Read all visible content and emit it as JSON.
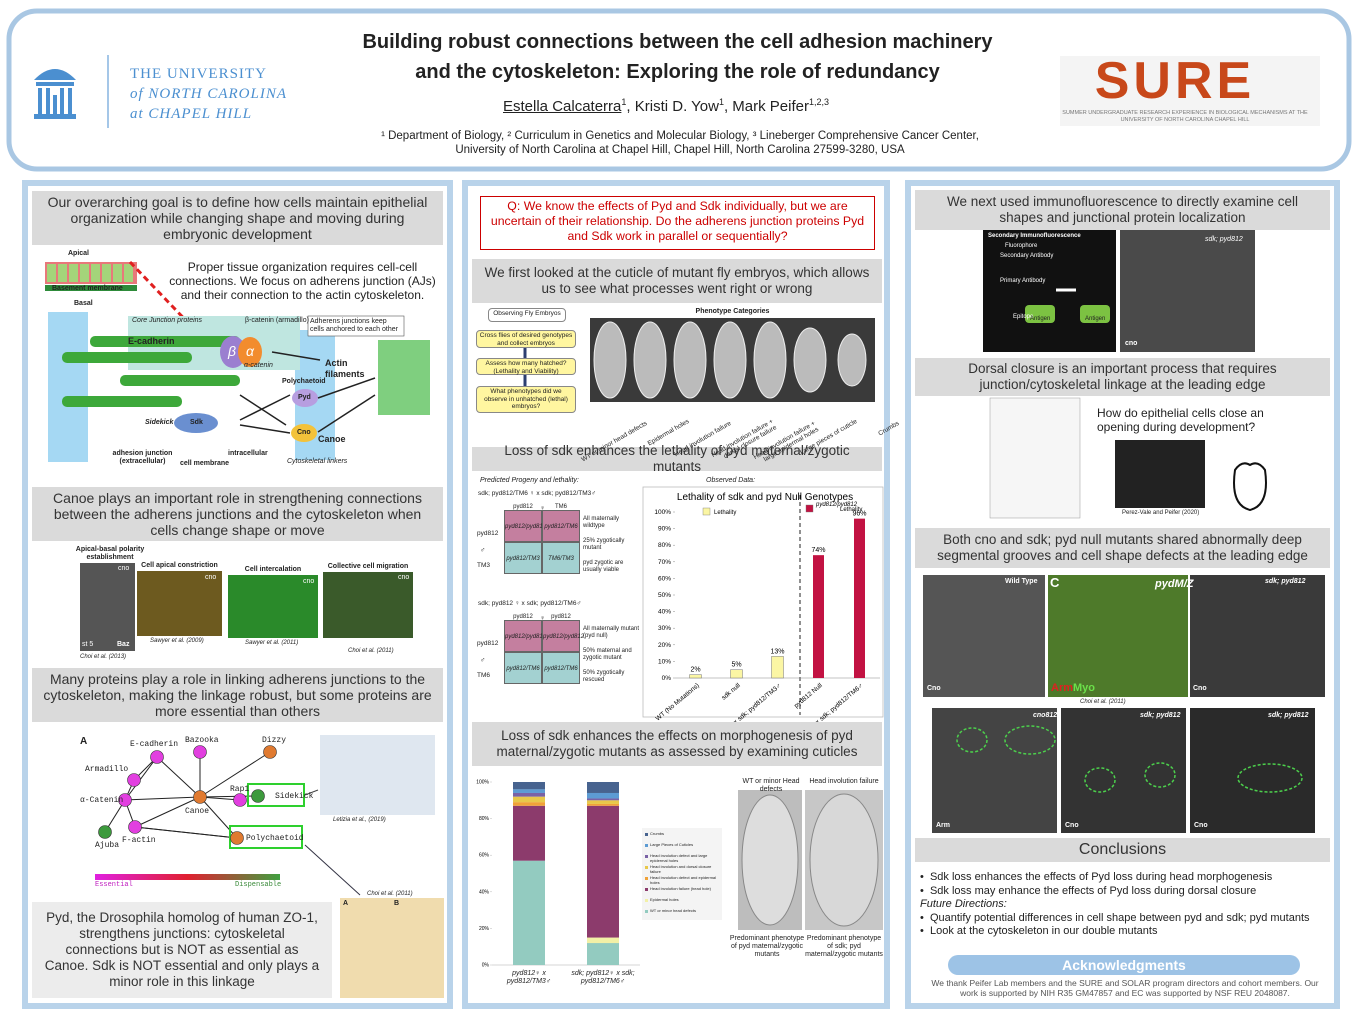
{
  "header": {
    "title_line1": "Building robust connections between the cell adhesion machinery",
    "title_line2": "and the cytoskeleton: Exploring the role of redundancy",
    "author1": "Estella Calcaterra",
    "author1_aff": "1",
    "author2": ", Kristi D. Yow",
    "author2_aff": "1",
    "author3": ", Mark Peifer",
    "author3_aff": "1,2,3",
    "affiliations_line1": "¹ Department of Biology, ² Curriculum in Genetics and Molecular Biology, ³ Lineberger Comprehensive Cancer Center,",
    "affiliations_line2": "University of North Carolina at Chapel Hill, Chapel Hill, North Carolina 27599-3280, USA",
    "university": [
      "THE UNIVERSITY",
      "of NORTH CAROLINA",
      "at CHAPEL HILL"
    ],
    "sure_logo": "SURE",
    "sure_tagline": "SUMMER UNDERGRADUATE RESEARCH EXPERIENCE IN BIOLOGICAL MECHANISMS AT THE UNIVERSITY OF NORTH CAROLINA CHAPEL HILL"
  },
  "left": {
    "goal_heading": "Our overarching goal is to define how cells maintain epithelial organization while changing shape and moving during embryonic development",
    "goal_text": "Proper tissue organization requires cell-cell connections. We focus on adherens junction (AJs) and their connection to the actin cytoskeleton.",
    "diagram": {
      "apical": "Apical",
      "basement": "Basement membrane",
      "basal": "Basal",
      "core": "Core Junction proteins",
      "ecad": "E-cadherin",
      "bcat": "β-catenin (armadillo)",
      "beta": "β",
      "alpha": "α",
      "acat": "α-catenin",
      "aj_note": "Adherens junctions keep cells anchored to each other",
      "actin": "Actin filaments",
      "pyd_name": "Polychaetoid",
      "pyd": "Pyd",
      "sidekick": "Sidekick",
      "sdk": "Sdk",
      "cno": "Cno",
      "canoe": "Canoe",
      "adhesion": "adhesion junction (extracellular)",
      "membrane": "cell membrane",
      "intracellular": "intracellular",
      "linkers": "Cytoskeletal linkers"
    },
    "canoe_heading": "Canoe plays an important role in strengthening connections between the adherens junctions and the cytoskeleton when cells change shape or move",
    "canoe_images": [
      {
        "title": "Apical-basal polarity establishment",
        "label": "cno",
        "cite": "Choi et al. (2013)"
      },
      {
        "title": "Cell apical constriction",
        "label": "cno",
        "cite": "Sawyer et al. (2009)"
      },
      {
        "title": "Cell intercalation",
        "label": "cno",
        "cite": "Sawyer et al. (2011)"
      },
      {
        "title": "Collective cell migration",
        "label": "cno",
        "cite": "Choi et al. (2011)"
      }
    ],
    "stage": "st 5",
    "baz": "Baz",
    "network_heading": "Many proteins play a role in linking adherens junctions to the cytoskeleton, making the linkage robust, but some proteins are more essential than others",
    "network": {
      "panel": "A",
      "nodes": [
        {
          "label": "E-cadherin",
          "color": "#e23fe0"
        },
        {
          "label": "Bazooka",
          "color": "#e23fe0"
        },
        {
          "label": "Dizzy",
          "color": "#e07a30"
        },
        {
          "label": "Armadillo",
          "color": "#e23fe0"
        },
        {
          "label": "Rap1",
          "color": "#e23fe0"
        },
        {
          "label": "α-Catenin",
          "color": "#e23fe0"
        },
        {
          "label": "Canoe",
          "color": "#e07a30"
        },
        {
          "label": "Sidekick",
          "color": "#3d9a3d"
        },
        {
          "label": "F-actin",
          "color": "#e23fe0"
        },
        {
          "label": "Polychaetoid",
          "color": "#e07a30"
        },
        {
          "label": "Ajuba",
          "color": "#3d9a3d"
        }
      ],
      "essential": "Essential",
      "dispensable": "Dispensable",
      "cite": "Letizia et al., (2019)"
    },
    "pyd_text": "Pyd, the Drosophila homolog of human ZO-1, strengthens junctions: cytoskeletal connections but is NOT as essential as Canoe. Sdk is NOT essential and only plays a minor role in this linkage",
    "pyd_image": {
      "cite": "Choi et al. (2011)",
      "a": "A",
      "b": "B"
    }
  },
  "middle": {
    "question": "Q: We know the effects of Pyd and Sdk individually, but we are uncertain of their relationship. Do the adherens junction proteins Pyd and Sdk work in parallel or sequentially?",
    "cuticle_heading": "We first looked at the cuticle of mutant fly embryos, which allows us to see what processes went right or wrong",
    "flow": [
      "Observing Fly Embryos",
      "Cross flies of desired genotypes and collect embryos",
      "Assess how many hatched? (Lethality and Viability)",
      "What phenotypes did we observe in unhatched (lethal) embryos?"
    ],
    "phenotypes_title": "Phenotype Categories",
    "phenotypes": [
      "WT or minor head defects",
      "Epidermal holes",
      "Head involution failure",
      "Head involution failure + dorsal closure failure",
      "Head involution failure + large epidermal holes",
      "Large pieces of cuticle",
      "Crumbs"
    ],
    "lethality_heading": "Loss of sdk enhances the lethality of pyd maternal/zygotic mutants",
    "predicted_title": "Predicted Progeny and lethality:",
    "observed_title": "Observed Data:",
    "punnett": [
      {
        "cross": "sdk; pyd812/TM6 ♀ x sdk; pyd812/TM3♂",
        "female": "♀",
        "male": "♂",
        "cols": [
          "pyd812",
          "TM6"
        ],
        "rows": [
          "pyd812",
          "TM3"
        ],
        "cells": [
          "pyd812/pyd812",
          "pyd812/TM6",
          "pyd812/TM3",
          "TM6/TM3"
        ],
        "notes": [
          "All maternally wildtype",
          "25% zygotically mutant",
          "pyd zygotic are usually viable"
        ]
      },
      {
        "cross": "sdk; pyd812 ♀ x sdk; pyd812/TM6♂",
        "female": "♀",
        "male": "♂",
        "cols": [
          "pyd812",
          "pyd812"
        ],
        "rows": [
          "pyd812",
          "TM6"
        ],
        "cells": [
          "pyd812/pyd812",
          "pyd812/pyd812",
          "pyd812/TM6",
          "pyd812/TM6"
        ],
        "notes": [
          "All maternally mutant (pyd null)",
          "50% maternal and zygotic mutant",
          "50% zygotically rescued"
        ]
      }
    ],
    "morph_heading": "Loss of sdk enhances the effects on morphogenesis of pyd maternal/zygotic mutants as assessed by examining cuticles",
    "predominant": [
      {
        "title": "WT or minor Head defects",
        "caption": "Predominant phenotype of pyd maternal/zygotic mutants"
      },
      {
        "title": "Head involution failure",
        "caption": "Predominant phenotype of sdk; pyd maternal/zygotic mutants"
      }
    ]
  },
  "right": {
    "if_heading": "We next used immunofluorescence to directly examine cell shapes and junctional protein localization",
    "if_diagram": {
      "title": "Secondary Immunofluorescence",
      "labels": [
        "Fluorophore",
        "Secondary Antibody",
        "Primary Antibody",
        "Epitope",
        "Antigen",
        "Antigen"
      ]
    },
    "if_image": {
      "genotype": "sdk; pyd812",
      "label": "cno"
    },
    "dc_heading": "Dorsal closure is an important process that requires junction/cytoskeletal linkage at the leading edge",
    "dc_question": "How do epithelial cells close an opening during development?",
    "dc_cite": "Perez-Vale and Peifer (2020)",
    "grooves_heading": "Both cno and sdk; pyd null mutants shared abnormally deep segmental grooves and cell shape defects at the leading edge",
    "micro_top": [
      {
        "title": "Wild Type",
        "label": "Cno"
      },
      {
        "panel": "C",
        "title": "pydM/Z",
        "label": "Arm",
        "label2": "Myo"
      },
      {
        "title": "sdk; pyd812",
        "label": "Cno"
      }
    ],
    "micro_cite": "Choi et al. (2011)",
    "micro_bottom": [
      {
        "title": "cno812",
        "label": "Arm"
      },
      {
        "title": "sdk; pyd812",
        "label": "Cno"
      },
      {
        "title": "sdk; pyd812",
        "label": "Cno"
      }
    ],
    "conclusions_title": "Conclusions",
    "conclusions": [
      "Sdk loss enhances the effects of Pyd loss during head morphogenesis",
      "Sdk loss may enhance the effects of Pyd loss during dorsal closure"
    ],
    "future_title": "Future Directions:",
    "future": [
      "Quantify potential differences in cell shape between pyd and sdk; pyd mutants",
      "Look at the cytoskeleton in our double mutants"
    ],
    "ack_title": "Acknowledgments",
    "ack": "We thank Peifer Lab members and the SURE and SOLAR program directors and cohort members. Our work is supported by NIH R35 GM47857 and EC was supported by NSF REU 2048087."
  },
  "chart_data": [
    {
      "type": "bar",
      "title": "Lethality of sdk and pyd Null Genotypes",
      "categories": [
        "WT (No Mutations)",
        "sdk null",
        "sdk; pyd812/TM6 ♀ x sdk; pyd812/TM3♂",
        "pyd812 Null",
        "sdk; pyd812 ♀ x sdk; pyd812/TM6♂"
      ],
      "series": [
        {
          "name": "Lethality",
          "color": "#fbf6a4",
          "values": [
            2,
            5,
            13,
            null,
            null
          ],
          "value_labels": [
            "2%",
            "5%",
            "13%",
            null,
            null
          ]
        },
        {
          "name": "Lethality",
          "color": "#c21242",
          "values": [
            null,
            null,
            null,
            74,
            96
          ],
          "value_labels": [
            null,
            null,
            null,
            "74%",
            "96%"
          ]
        }
      ],
      "legend_genotype": "pyd812/pyd812",
      "ylim": [
        0,
        100
      ],
      "yticks": [
        {
          "value": 0,
          "label": "0%"
        },
        {
          "value": 10,
          "label": "10%"
        },
        {
          "value": 20,
          "label": "20%"
        },
        {
          "value": 30,
          "label": "30%"
        },
        {
          "value": 40,
          "label": "40%"
        },
        {
          "value": 50,
          "label": "50%"
        },
        {
          "value": 60,
          "label": "60%"
        },
        {
          "value": 70,
          "label": "70%"
        },
        {
          "value": 80,
          "label": "80%"
        },
        {
          "value": 90,
          "label": "90%"
        },
        {
          "value": 100,
          "label": "100%"
        }
      ],
      "grid": false
    },
    {
      "type": "stacked-bar",
      "categories": [
        "pyd812♀ x pyd812/TM3♂",
        "sdk; pyd812♀ x sdk; pyd812/TM6♂"
      ],
      "series": [
        {
          "name": "WT or minor head defects",
          "color": "#93cbc0",
          "values": [
            57,
            12
          ]
        },
        {
          "name": "Epidermal holes",
          "color": "#f2f0a6",
          "values": [
            0,
            3
          ]
        },
        {
          "name": "Head involution failure (head hole)",
          "color": "#8c3b6c",
          "values": [
            30,
            72
          ]
        },
        {
          "name": "Head involution defect and epidermal holes",
          "color": "#f0a238",
          "values": [
            2,
            1
          ]
        },
        {
          "name": "Head involution and dorsal closure failure",
          "color": "#e8c84a",
          "values": [
            3,
            2
          ]
        },
        {
          "name": "Head involution defect and large epidermal holes",
          "color": "#7a62a6",
          "values": [
            2,
            1
          ]
        },
        {
          "name": "Large Pieces of Cuticles",
          "color": "#5d9bd3",
          "values": [
            2,
            3
          ]
        },
        {
          "name": "Crumbs",
          "color": "#47638f",
          "values": [
            4,
            6
          ]
        }
      ],
      "ylim": [
        0,
        100
      ],
      "yticks": [
        {
          "value": 0,
          "label": "0%"
        },
        {
          "value": 20,
          "label": "20%"
        },
        {
          "value": 40,
          "label": "40%"
        },
        {
          "value": 60,
          "label": "60%"
        },
        {
          "value": 80,
          "label": "80%"
        },
        {
          "value": 100,
          "label": "100%"
        }
      ]
    }
  ]
}
